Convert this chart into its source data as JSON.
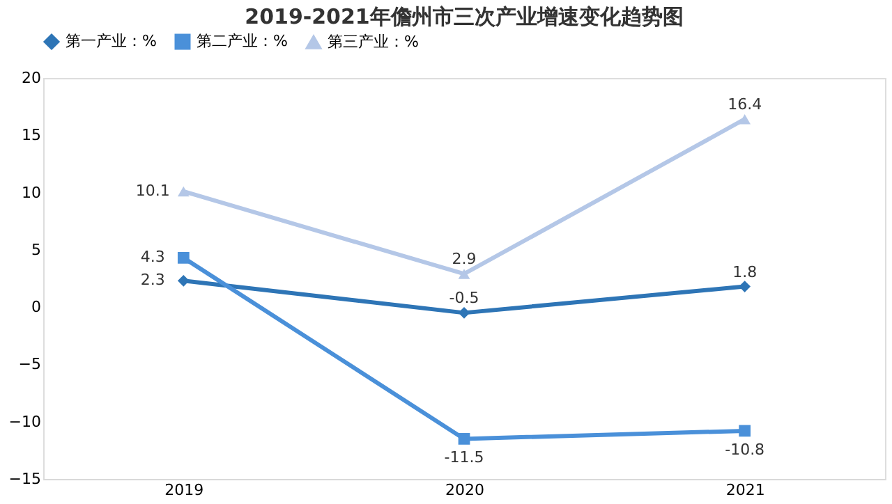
{
  "chart_data": {
    "type": "line",
    "title": "2019-2021年儋州市三次产业增速变化趋势图",
    "categories": [
      "2019",
      "2020",
      "2021"
    ],
    "series": [
      {
        "name": "第一产业：%",
        "color": "#2e75b6",
        "marker": "diamond",
        "values": [
          2.3,
          -0.5,
          1.8
        ]
      },
      {
        "name": "第二产业：%",
        "color": "#4a90d9",
        "marker": "square",
        "values": [
          4.3,
          -11.5,
          -10.8
        ]
      },
      {
        "name": "第三产业：%",
        "color": "#b4c7e7",
        "marker": "triangle",
        "values": [
          10.1,
          2.9,
          16.4
        ]
      }
    ],
    "ylim": [
      -15,
      20
    ],
    "yticks": [
      -15,
      -10,
      -5,
      0,
      5,
      10,
      15,
      20
    ],
    "data_labels": true,
    "legend": "top",
    "grid": false,
    "line_style": "solid"
  }
}
